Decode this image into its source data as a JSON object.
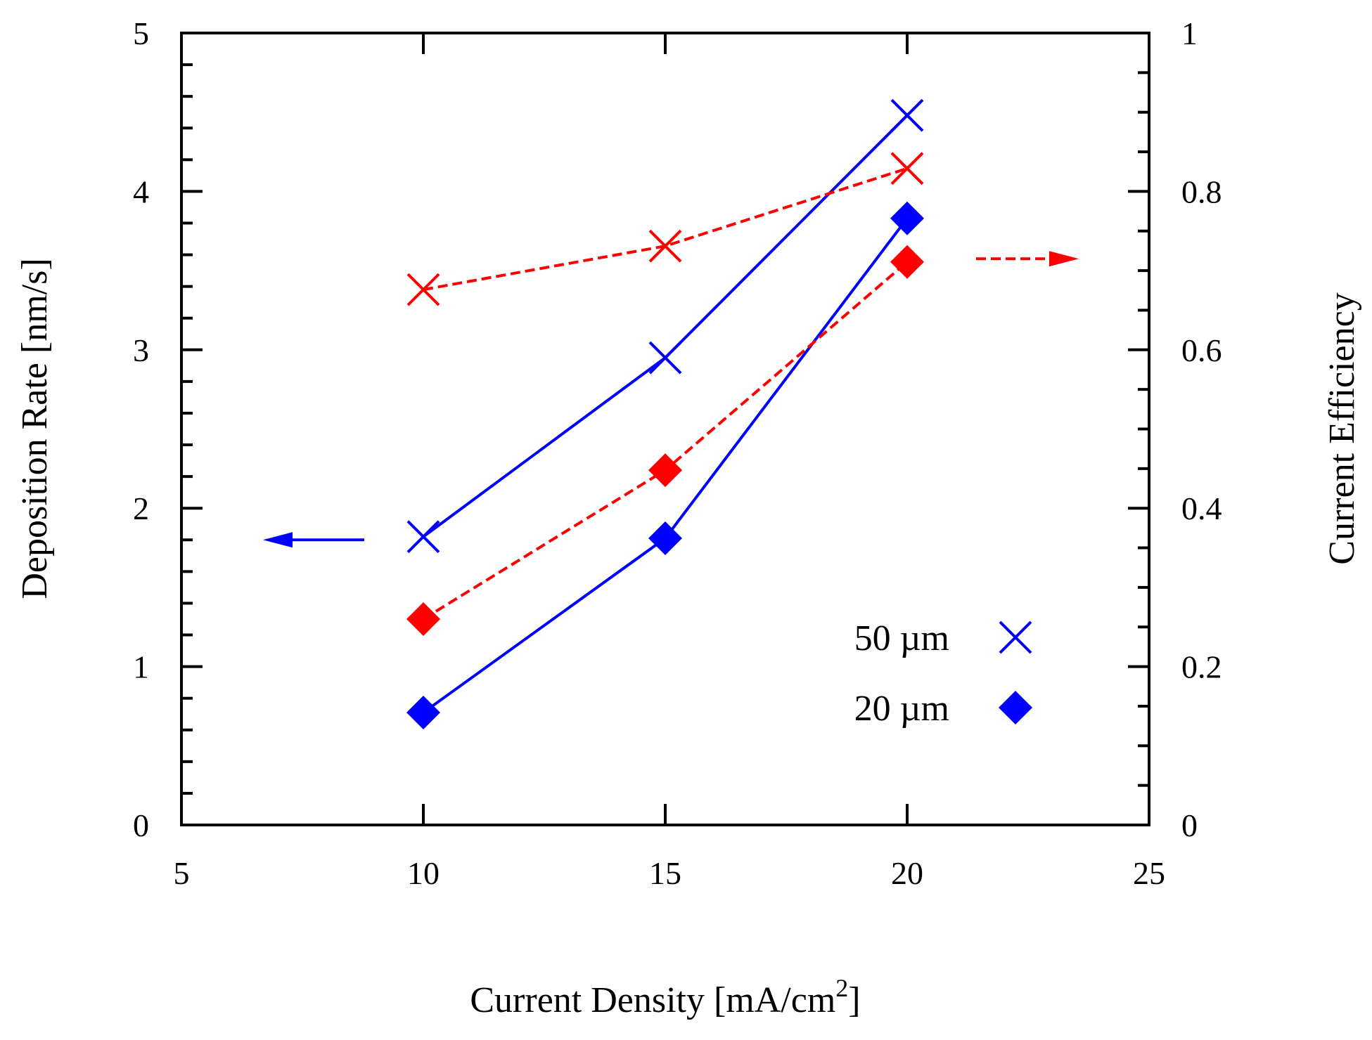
{
  "chart_data": {
    "type": "line",
    "title": "",
    "xlabel": "Current Density [mA/cm",
    "xlabel_sup": "2",
    "xlabel_close": "]",
    "ylabel": "Deposition Rate [nm/s]",
    "y2label": "Current Efficiency",
    "xlim": [
      5,
      25
    ],
    "ylim": [
      0,
      5
    ],
    "y2lim": [
      0,
      1
    ],
    "x_ticks": [
      5,
      10,
      15,
      20,
      25
    ],
    "y_ticks": [
      0,
      1,
      2,
      3,
      4,
      5
    ],
    "y2_ticks": [
      0,
      0.2,
      0.4,
      0.6,
      0.8,
      1
    ],
    "x_tick_labels": [
      "5",
      "10",
      "15",
      "20",
      "25"
    ],
    "y_tick_labels": [
      "0",
      "1",
      "2",
      "3",
      "4",
      "5"
    ],
    "y2_tick_labels": [
      "0",
      "0.2",
      "0.4",
      "0.6",
      "0.8",
      "1"
    ],
    "grid": false,
    "legend_position": "bottom-right",
    "series": [
      {
        "name": "50 µm",
        "axis": "left",
        "x": [
          10,
          15,
          20
        ],
        "values": [
          1.82,
          2.95,
          4.48
        ],
        "color": "#0000ff",
        "dash": "solid",
        "marker": "cross"
      },
      {
        "name": "20 µm",
        "axis": "left",
        "x": [
          10,
          15,
          20
        ],
        "values": [
          0.71,
          1.81,
          3.83
        ],
        "color": "#0000ff",
        "dash": "solid",
        "marker": "diamond"
      },
      {
        "name": "50 µm",
        "axis": "right",
        "x": [
          10,
          15,
          20
        ],
        "values": [
          0.676,
          0.731,
          0.829
        ],
        "color": "#ff0000",
        "dash": "dashed",
        "marker": "cross"
      },
      {
        "name": "20 µm",
        "axis": "right",
        "x": [
          10,
          15,
          20
        ],
        "values": [
          0.26,
          0.448,
          0.711
        ],
        "color": "#ff0000",
        "dash": "dashed",
        "marker": "diamond"
      }
    ],
    "legend": [
      {
        "label": "50 µm",
        "marker": "cross",
        "color": "#0000ff"
      },
      {
        "label": "20 µm",
        "marker": "diamond",
        "color": "#0000ff"
      }
    ],
    "annotations": [
      {
        "type": "arrow",
        "direction": "left",
        "meaning": "left axis for solid blue lines",
        "color": "#0000ff",
        "at_x": 7.5,
        "at_y": 1.8
      },
      {
        "type": "arrow",
        "direction": "right",
        "meaning": "right axis for dashed red lines",
        "color": "#ff0000",
        "at_x": 22.5,
        "at_y2": 0.715
      }
    ]
  }
}
